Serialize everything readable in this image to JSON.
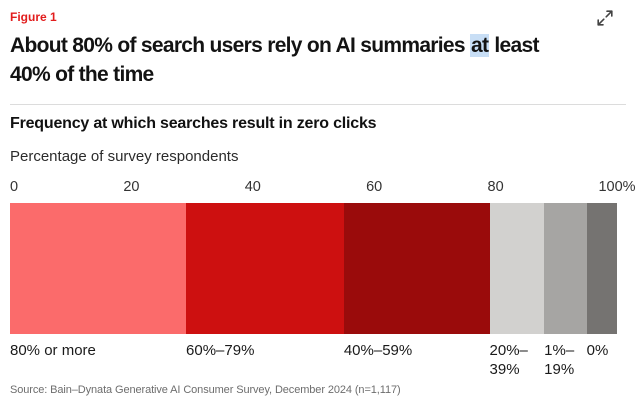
{
  "figure_label": "Figure 1",
  "icons": {
    "top_right": "expand-diagonal-arrows"
  },
  "title": {
    "line1_before": "About 80% of search users rely on AI summaries ",
    "line1_highlight": "at",
    "line1_after": " least",
    "line2": "40% of the time",
    "highlight_color": "#c8def5"
  },
  "chart_data": {
    "type": "bar",
    "variant": "horizontal-stacked-single-bar",
    "title": "Frequency at which searches result in zero clicks",
    "subtitle": "Percentage of survey respondents",
    "categories": [
      "80% or more",
      "60%–79%",
      "40%–59%",
      "20%–39%",
      "1%–19%",
      "0%"
    ],
    "values": [
      29,
      26,
      24,
      9,
      7,
      5
    ],
    "colors": [
      "#fb6b6b",
      "#cd1010",
      "#9a0b0b",
      "#d2d1cf",
      "#a6a5a3",
      "#757371"
    ],
    "xlim": [
      0,
      100
    ],
    "x_ticks": [
      {
        "value": 0,
        "label": "0"
      },
      {
        "value": 20,
        "label": "20"
      },
      {
        "value": 40,
        "label": "40"
      },
      {
        "value": 60,
        "label": "60"
      },
      {
        "value": 80,
        "label": "80"
      },
      {
        "value": 100,
        "label": "100%"
      }
    ],
    "grid": false,
    "legend": "none"
  },
  "source": "Source: Bain–Dynata Generative AI Consumer Survey, December 2024 (n=1,117)",
  "colors": {
    "figure_label": "#e21d1d",
    "divider": "#dcdcdc",
    "text_primary": "#131313",
    "text_secondary": "#2b2b2b",
    "source_text": "#6d6d6d",
    "icon": "#444444"
  }
}
